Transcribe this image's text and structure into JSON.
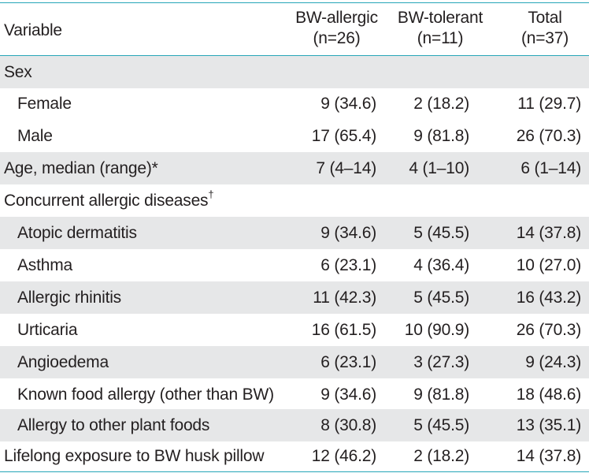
{
  "header": {
    "variable": "Variable",
    "col1_line1": "BW-allergic",
    "col1_line2": "(n=26)",
    "col2_line1": "BW-tolerant",
    "col2_line2": "(n=11)",
    "col3_line1": "Total",
    "col3_line2": "(n=37)"
  },
  "rows": [
    {
      "label": "Sex",
      "v1": "",
      "v2": "",
      "v3": ""
    },
    {
      "label": "Female",
      "v1": "9 (34.6)",
      "v2": "2 (18.2)",
      "v3": "11 (29.7)"
    },
    {
      "label": "Male",
      "v1": "17 (65.4)",
      "v2": "9 (81.8)",
      "v3": "26 (70.3)"
    },
    {
      "label": "Age, median (range)*",
      "v1": "7 (4–14)",
      "v2": "4 (1–10)",
      "v3": "6 (1–14)"
    },
    {
      "label": "Concurrent allergic diseases",
      "sup": "†",
      "v1": "",
      "v2": "",
      "v3": ""
    },
    {
      "label": "Atopic dermatitis",
      "v1": "9 (34.6)",
      "v2": "5 (45.5)",
      "v3": "14 (37.8)"
    },
    {
      "label": "Asthma",
      "v1": "6 (23.1)",
      "v2": "4 (36.4)",
      "v3": "10 (27.0)"
    },
    {
      "label": "Allergic rhinitis",
      "v1": "11 (42.3)",
      "v2": "5 (45.5)",
      "v3": "16 (43.2)"
    },
    {
      "label": "Urticaria",
      "v1": "16 (61.5)",
      "v2": "10 (90.9)",
      "v3": "26 (70.3)"
    },
    {
      "label": "Angioedema",
      "v1": "6 (23.1)",
      "v2": "3 (27.3)",
      "v3": "9 (24.3)"
    },
    {
      "label": "Known food allergy (other than BW)",
      "v1": "9 (34.6)",
      "v2": "9 (81.8)",
      "v3": "18 (48.6)"
    },
    {
      "label": "Allergy to other plant foods",
      "v1": "8 (30.8)",
      "v2": "5 (45.5)",
      "v3": "13 (35.1)"
    },
    {
      "label": "Lifelong exposure to BW husk pillow",
      "v1": "12 (46.2)",
      "v2": "2 (18.2)",
      "v3": "14 (37.8)"
    }
  ],
  "colors": {
    "rule": "#27a6b8",
    "shade": "#e6e7e8",
    "text": "#231f20"
  }
}
